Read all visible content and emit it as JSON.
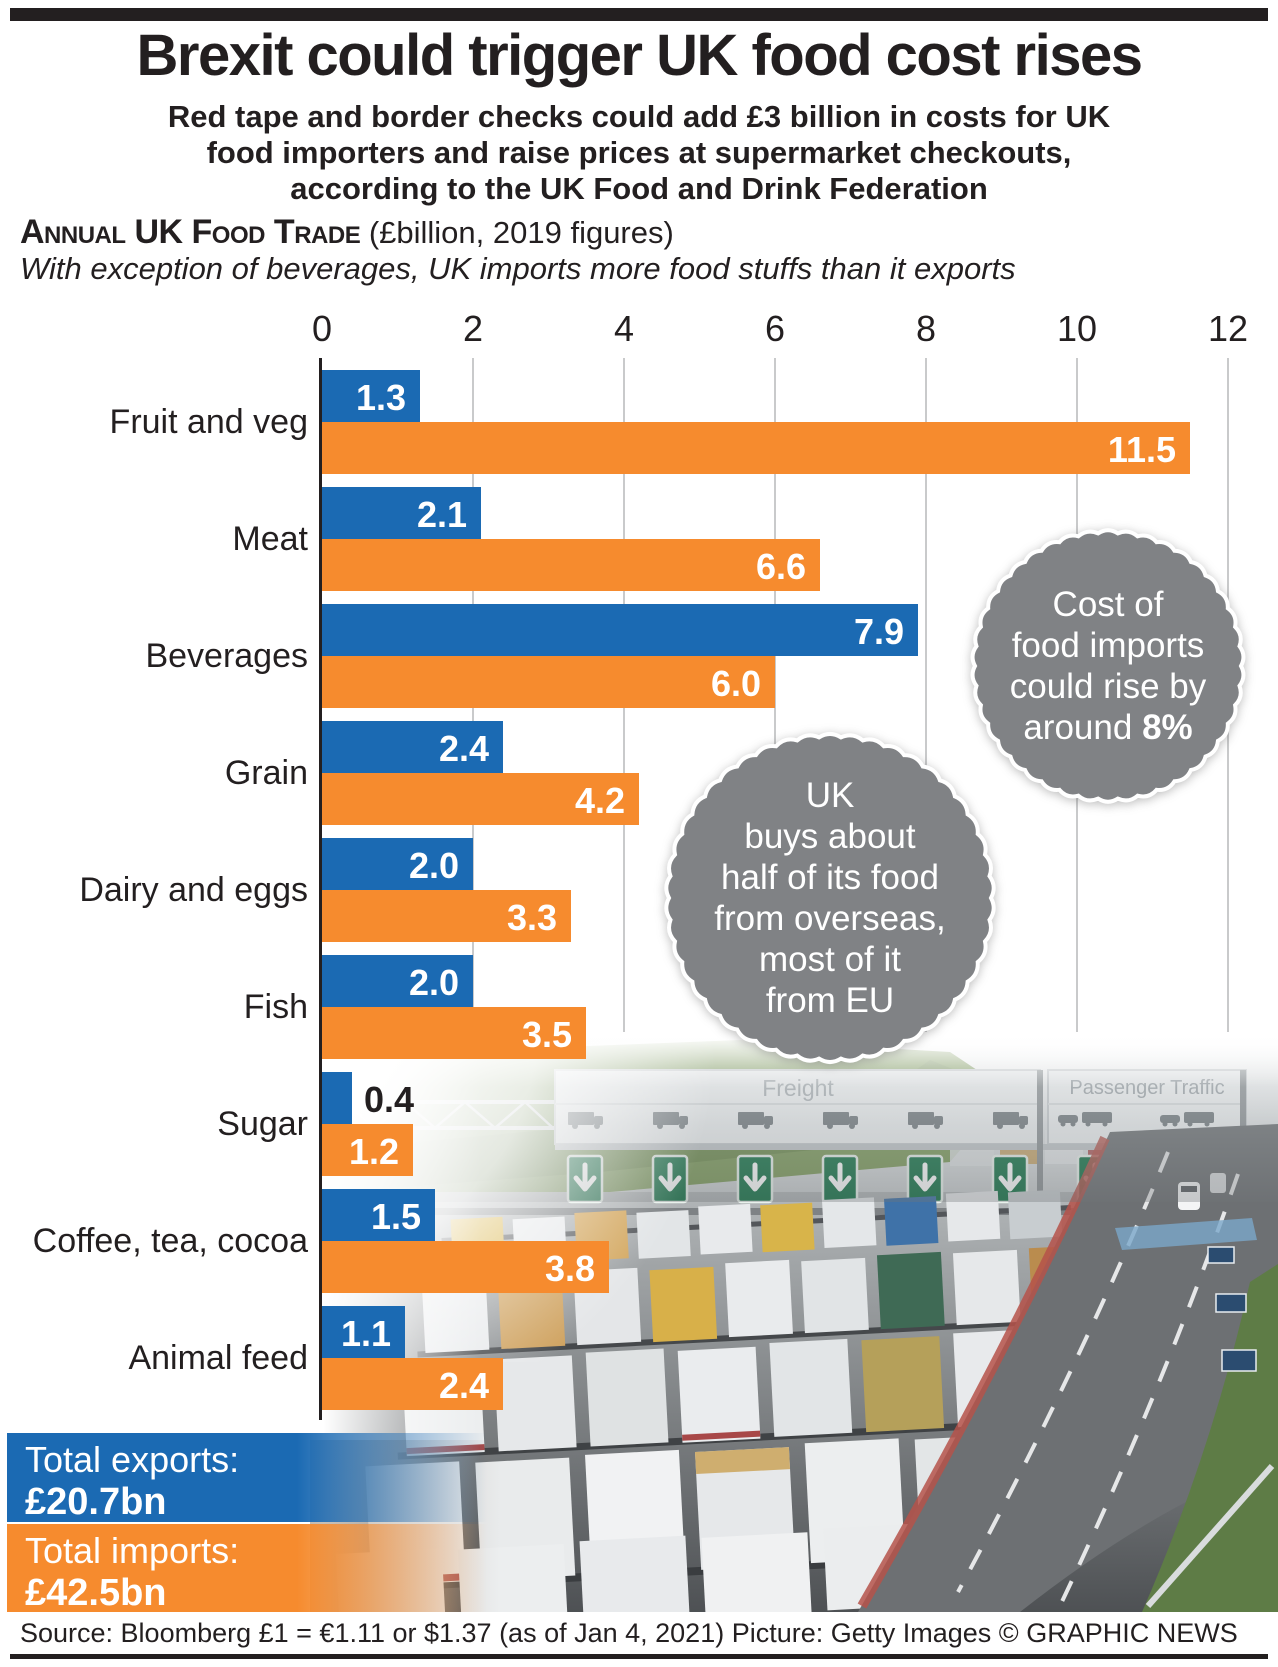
{
  "header": {
    "title": "Brexit could trigger UK food cost rises",
    "subtitle_lines": [
      "Red tape and border checks could add £3 billion in costs for UK",
      "food importers and raise prices at supermarket checkouts,",
      "according to the UK Food and Drink Federation"
    ],
    "section_title": "Annual UK Food Trade",
    "section_suffix": " (£billion, 2019 figures)",
    "section_note": "With exception of beverages, UK imports more food stuffs than it exports"
  },
  "chart_data": {
    "type": "bar",
    "orientation": "horizontal",
    "unit": "£billion",
    "categories": [
      "Fruit and veg",
      "Meat",
      "Beverages",
      "Grain",
      "Dairy and eggs",
      "Fish",
      "Sugar",
      "Coffee, tea, cocoa",
      "Animal feed"
    ],
    "series": [
      {
        "name": "Exports",
        "color": "#1b6ab3",
        "values": [
          1.3,
          2.1,
          7.9,
          2.4,
          2.0,
          2.0,
          0.4,
          1.5,
          1.1
        ]
      },
      {
        "name": "Imports",
        "color": "#f68b2e",
        "values": [
          11.5,
          6.6,
          6.0,
          4.2,
          3.3,
          3.5,
          1.2,
          3.8,
          2.4
        ]
      }
    ],
    "xlim": [
      0,
      12
    ],
    "ticks": [
      0,
      2,
      4,
      6,
      8,
      10,
      12
    ],
    "grid": true,
    "totals": {
      "exports": 20.7,
      "imports": 42.5
    }
  },
  "callouts": [
    {
      "lines": [
        "Cost of",
        "food imports",
        "could rise by",
        "around "
      ],
      "bold": "8%",
      "color": "#808285"
    },
    {
      "lines": [
        "UK",
        "buys about",
        "half of its food",
        "from overseas,",
        "most of it",
        "from EU"
      ],
      "color": "#808285"
    }
  ],
  "totals": {
    "exports_label": "Total exports:",
    "exports_value": "£20.7bn",
    "imports_label": "Total imports:",
    "imports_value": "£42.5bn"
  },
  "photo": {
    "freight_sign": "Freight",
    "passenger_sign": "Passenger Traffic"
  },
  "footer": {
    "source": "Source: Bloomberg £1 = €1.11 or $1.37 (as of Jan 4, 2021) Picture: Getty Images © GRAPHIC NEWS"
  }
}
